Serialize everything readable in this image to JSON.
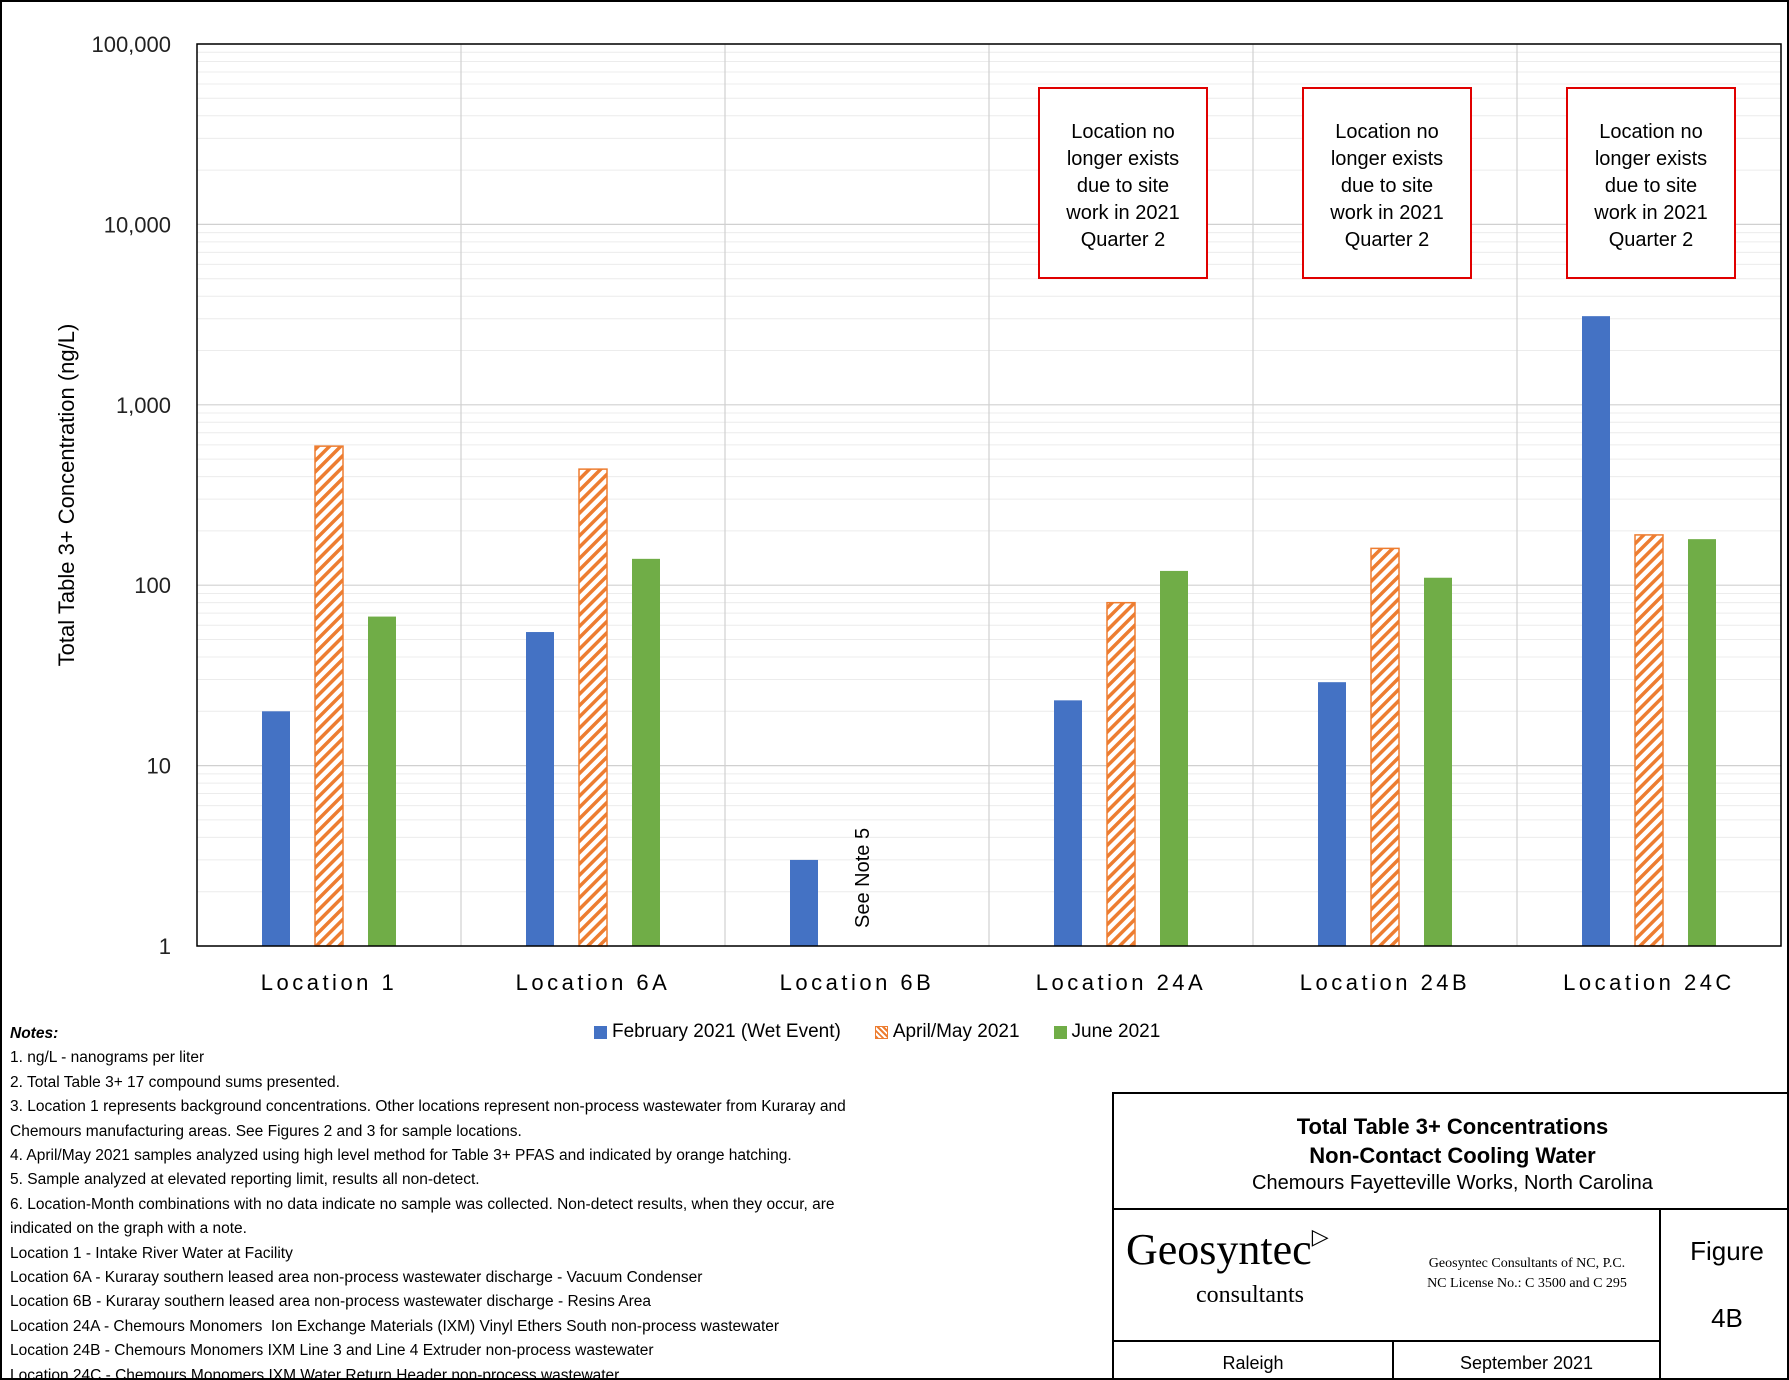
{
  "chart_data": {
    "type": "bar",
    "scale": "log",
    "ylabel": "Total Table 3+ Concentration (ng/L)",
    "ylim": [
      1,
      100000
    ],
    "yticks": [
      {
        "value": 1,
        "label": "1"
      },
      {
        "value": 10,
        "label": "10"
      },
      {
        "value": 100,
        "label": "100"
      },
      {
        "value": 1000,
        "label": "1,000"
      },
      {
        "value": 10000,
        "label": "10,000"
      },
      {
        "value": 100000,
        "label": "100,000"
      }
    ],
    "categories": [
      "Location 1",
      "Location 6A",
      "Location 6B",
      "Location 24A",
      "Location 24B",
      "Location 24C"
    ],
    "series": [
      {
        "name": "February 2021 (Wet Event)",
        "color": "#4472C4",
        "pattern": "solid",
        "values": [
          20,
          55,
          3,
          23,
          29,
          3100
        ]
      },
      {
        "name": "April/May 2021",
        "color": "#ED7D31",
        "pattern": "hatched",
        "values": [
          590,
          440,
          null,
          80,
          160,
          190
        ]
      },
      {
        "name": "June 2021",
        "color": "#70AD47",
        "pattern": "solid",
        "values": [
          67,
          140,
          null,
          120,
          110,
          180
        ]
      }
    ],
    "annotations": [
      {
        "category": "Location 6B",
        "text": "See Note 5",
        "rotated": true
      },
      {
        "category": "Location 24A",
        "text": [
          "Location no",
          "longer exists",
          "due to site",
          "work in 2021",
          "Quarter 2"
        ]
      },
      {
        "category": "Location 24B",
        "text": [
          "Location no",
          "longer exists",
          "due to site",
          "work in 2021",
          "Quarter 2"
        ]
      },
      {
        "category": "Location 24C",
        "text": [
          "Location no",
          "longer exists",
          "due to site",
          "work in 2021",
          "Quarter 2"
        ]
      }
    ],
    "grid": true,
    "legend_placement": "bottom"
  },
  "notes": {
    "title": "Notes:",
    "lines": [
      "1. ng/L - nanograms per liter",
      "2. Total Table 3+ 17 compound sums presented.",
      "3. Location 1 represents background concentrations. Other locations represent non-process wastewater from Kuraray and",
      "Chemours manufacturing areas. See Figures 2 and 3 for sample locations.",
      "4. April/May 2021 samples analyzed using high level method for Table 3+ PFAS and indicated by orange hatching.",
      "5. Sample analyzed at elevated reporting limit, results all non-detect.",
      "6. Location-Month combinations with no data indicate no sample was collected. Non-detect results, when they occur, are",
      "indicated on the graph with a note.",
      "Location 1 - Intake River Water at Facility",
      "Location 6A - Kuraray southern leased area non-process wastewater discharge - Vacuum Condenser",
      "Location 6B - Kuraray southern leased area non-process wastewater discharge - Resins Area",
      "Location 24A - Chemours Monomers  Ion Exchange Materials (IXM) Vinyl Ethers South non-process wastewater",
      "Location 24B - Chemours Monomers IXM Line 3 and Line 4 Extruder non-process wastewater",
      "Location 24C - Chemours Monomers IXM Water Return Header non-process wastewater"
    ]
  },
  "title_block": {
    "title_line1": "Total Table 3+ Concentrations",
    "title_line2": "Non-Contact Cooling Water",
    "subtitle": "Chemours Fayetteville Works, North Carolina",
    "logo_word": "Geosyntec",
    "logo_arrow": "▷",
    "logo_sub": "consultants",
    "license_line1": "Geosyntec Consultants of NC, P.C.",
    "license_line2": "NC License No.: C 3500 and C 295",
    "figure_label": "Figure",
    "figure_number": "4B",
    "city": "Raleigh",
    "date": "September 2021"
  }
}
